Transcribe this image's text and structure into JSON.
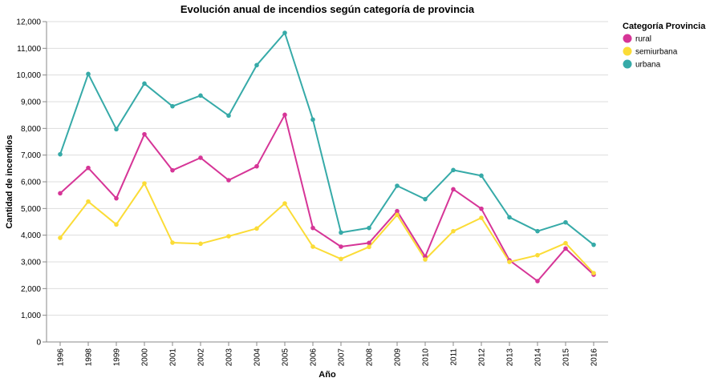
{
  "chart_data": {
    "type": "line",
    "title": "Evolución anual de incendios según categoría de provincia",
    "xlabel": "Año",
    "ylabel": "Cantidad de incendios",
    "categories": [
      "1996",
      "1998",
      "1999",
      "2000",
      "2001",
      "2002",
      "2003",
      "2004",
      "2005",
      "2006",
      "2007",
      "2008",
      "2009",
      "2010",
      "2011",
      "2012",
      "2013",
      "2014",
      "2015",
      "2016"
    ],
    "ylim": [
      0,
      12000
    ],
    "yticks": [
      0,
      1000,
      2000,
      3000,
      4000,
      5000,
      6000,
      7000,
      8000,
      9000,
      10000,
      11000,
      12000
    ],
    "ytick_labels": [
      "0",
      "1,000",
      "2,000",
      "3,000",
      "4,000",
      "5,000",
      "6,000",
      "7,000",
      "8,000",
      "9,000",
      "10,000",
      "11,000",
      "12,000"
    ],
    "grid": true,
    "legend": {
      "title": "Categoría Provincia",
      "position": "top-right"
    },
    "series": [
      {
        "name": "rural",
        "color": "#d63597",
        "values": [
          5570,
          6520,
          5380,
          7780,
          6430,
          6900,
          6060,
          6580,
          8510,
          4270,
          3570,
          3710,
          4900,
          3200,
          5720,
          4990,
          3060,
          2280,
          3500,
          2520
        ]
      },
      {
        "name": "semiurbana",
        "color": "#fbdc37",
        "values": [
          3900,
          5260,
          4400,
          5940,
          3720,
          3680,
          3960,
          4250,
          5190,
          3570,
          3110,
          3560,
          4760,
          3090,
          4150,
          4650,
          3000,
          3250,
          3700,
          2580
        ]
      },
      {
        "name": "urbana",
        "color": "#36aaa8",
        "values": [
          7030,
          10040,
          7970,
          9680,
          8830,
          9230,
          8480,
          10370,
          11580,
          8330,
          4100,
          4270,
          5850,
          5350,
          6440,
          6230,
          4670,
          4150,
          4480,
          3640
        ]
      }
    ]
  }
}
